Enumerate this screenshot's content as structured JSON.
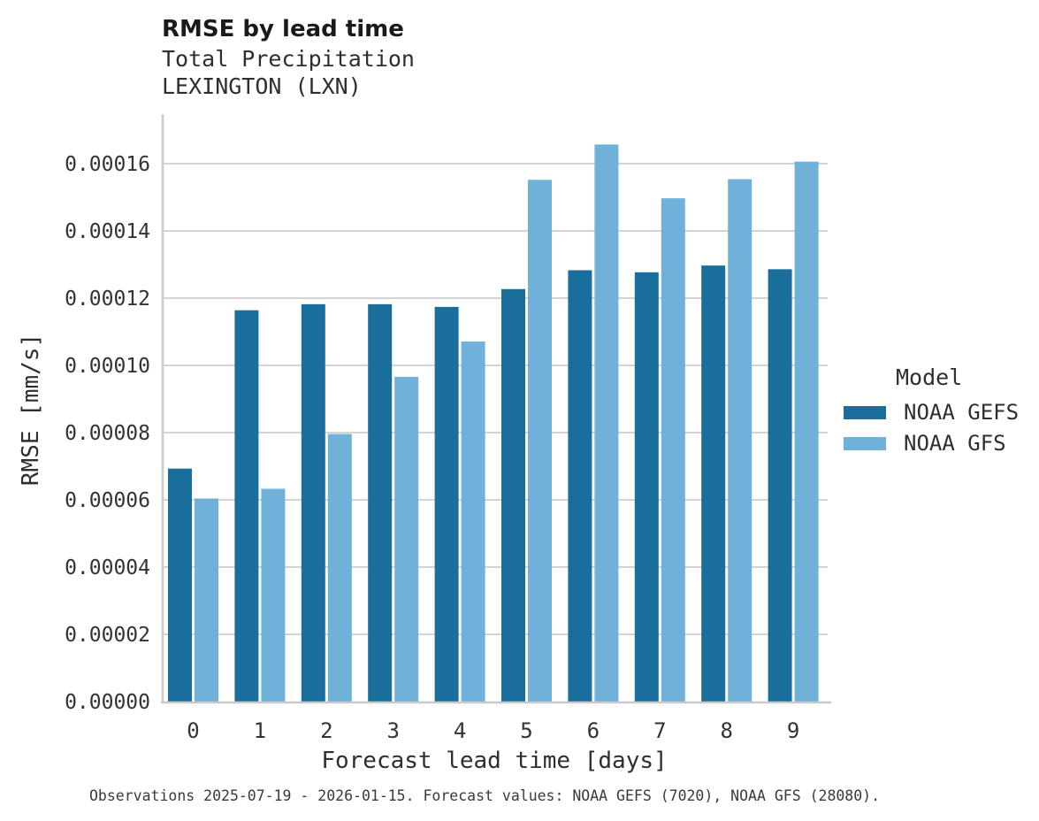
{
  "header": {
    "title": "RMSE by lead time",
    "subtitle_line1": "Total Precipitation",
    "subtitle_line2": "LEXINGTON (LXN)"
  },
  "axes": {
    "x_title": "Forecast lead time [days]",
    "y_title": "RMSE [mm/s]"
  },
  "legend": {
    "title": "Model",
    "entries": [
      {
        "label": "NOAA GEFS",
        "color": "#1a6e9c"
      },
      {
        "label": "NOAA GFS",
        "color": "#6fb1d9"
      }
    ]
  },
  "footer": {
    "caption": "Observations 2025-07-19 - 2026-01-15. Forecast values: NOAA GEFS (7020), NOAA GFS (28080)."
  },
  "colors": {
    "gefs_bar": "#1a6e9c",
    "gfs_bar": "#6fb1d9",
    "gridline": "#d4d4d4",
    "spine": "#c9c9c9",
    "tick_text": "#333333"
  },
  "chart_data": {
    "type": "bar",
    "title": "RMSE by lead time",
    "subtitle": [
      "Total Precipitation",
      "LEXINGTON (LXN)"
    ],
    "xlabel": "Forecast lead time [days]",
    "ylabel": "RMSE [mm/s]",
    "categories": [
      "0",
      "1",
      "2",
      "3",
      "4",
      "5",
      "6",
      "7",
      "8",
      "9"
    ],
    "series": [
      {
        "name": "NOAA GEFS",
        "color": "#1a6e9c",
        "values": [
          6.93e-05,
          0.0001164,
          0.0001182,
          0.0001182,
          0.0001174,
          0.0001227,
          0.0001283,
          0.0001277,
          0.0001297,
          0.0001286
        ]
      },
      {
        "name": "NOAA GFS",
        "color": "#6fb1d9",
        "values": [
          6.04e-05,
          6.33e-05,
          7.96e-05,
          9.66e-05,
          0.0001071,
          0.0001552,
          0.0001657,
          0.0001497,
          0.0001554,
          0.0001606
        ]
      }
    ],
    "ylim": [
      0,
      0.00017474
    ],
    "ytick_step": 2e-05,
    "ytick_labels": [
      "0.00000",
      "0.00002",
      "0.00004",
      "0.00006",
      "0.00008",
      "0.00010",
      "0.00012",
      "0.00014",
      "0.00016"
    ],
    "grid": true,
    "legend_title": "Model",
    "legend_position": "right"
  }
}
